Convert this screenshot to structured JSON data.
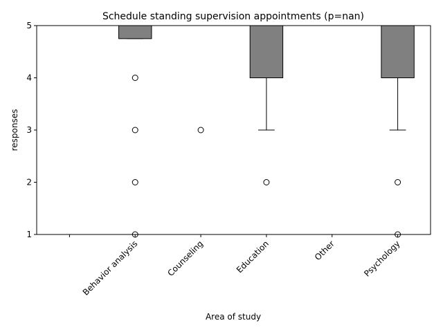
{
  "chart_data": {
    "type": "box",
    "title": "Schedule standing supervision appointments (p=nan)",
    "x_label": "Area of study",
    "y_label": "responses",
    "categories": [
      null,
      "Behavior analysis",
      "Counseling",
      "Education",
      "Other",
      "Psychology"
    ],
    "color": "#808080",
    "ylim": [
      1,
      5
    ],
    "yticks": [
      1,
      2,
      3,
      4,
      5
    ],
    "boxes": [
      null,
      {
        "whislo": 4.75,
        "q1": 4.75,
        "med": 5,
        "q3": 5,
        "whishi": 5,
        "fliers": [
          4,
          3,
          2,
          1
        ]
      },
      {
        "whislo": 5,
        "q1": 5,
        "med": 5,
        "q3": 5,
        "whishi": 5,
        "fliers": [
          3
        ]
      },
      {
        "whislo": 3,
        "q1": 4,
        "med": 5,
        "q3": 5,
        "whishi": 5,
        "fliers": [
          2
        ]
      },
      {
        "whislo": 5,
        "q1": 5,
        "med": 5,
        "q3": 5,
        "whishi": 5,
        "fliers": []
      },
      {
        "whislo": 3,
        "q1": 4,
        "med": 5,
        "q3": 5,
        "whishi": 5,
        "fliers": [
          2,
          1
        ]
      }
    ]
  }
}
